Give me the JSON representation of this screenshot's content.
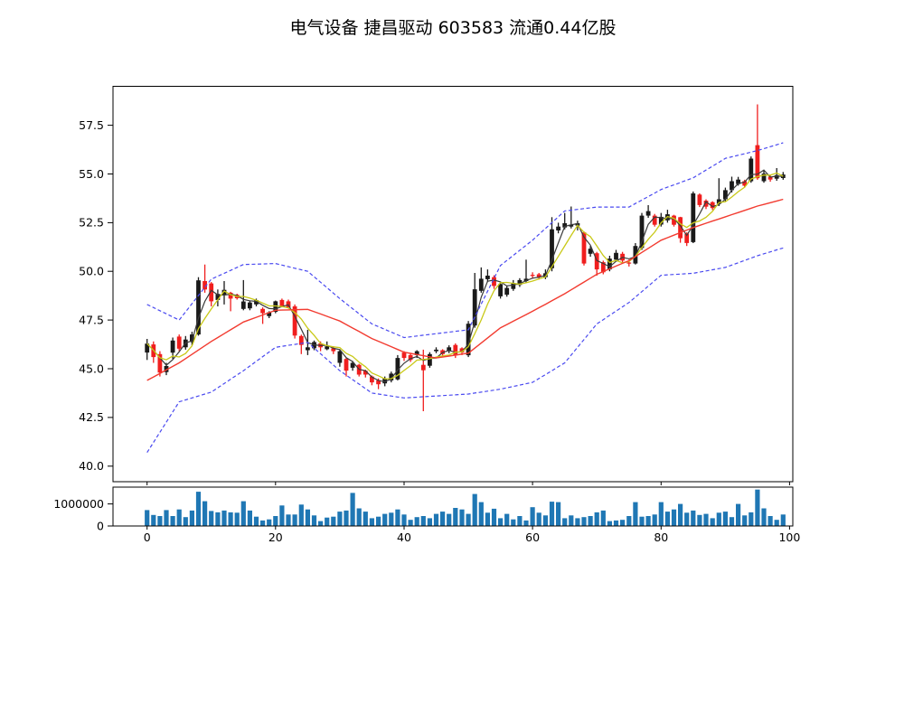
{
  "title": "电气设备 捷昌驱动 603583 流通0.44亿股",
  "chart_data": {
    "type": "candlestick",
    "panels": [
      "price",
      "volume"
    ],
    "legend": "none",
    "grid": false,
    "x_ticks": [
      0,
      20,
      40,
      60,
      80,
      100
    ],
    "price_ticks": [
      40.0,
      42.5,
      45.0,
      47.5,
      50.0,
      52.5,
      55.0,
      57.5
    ],
    "volume_ticks": [
      0,
      1000000
    ],
    "xlim": [
      -5.3,
      100.5
    ],
    "price_ylim": [
      39.2,
      59.5
    ],
    "volume_ylim": [
      0,
      1760000
    ],
    "candles": {
      "open": [
        45.83,
        46.25,
        45.75,
        44.83,
        45.83,
        46.65,
        46.1,
        46.37,
        46.76,
        49.5,
        49.38,
        48.53,
        48.8,
        48.9,
        48.8,
        48.07,
        48.1,
        48.3,
        48.07,
        47.7,
        47.92,
        48.53,
        48.46,
        48.2,
        46.68,
        45.95,
        46.05,
        46.3,
        46.0,
        46.05,
        45.3,
        45.5,
        45.05,
        45.2,
        44.9,
        44.6,
        44.4,
        44.25,
        44.4,
        44.45,
        45.83,
        45.7,
        45.7,
        45.2,
        45.15,
        45.9,
        45.95,
        45.9,
        46.22,
        46.05,
        45.69,
        47.22,
        49.0,
        49.6,
        49.7,
        48.72,
        48.8,
        49.1,
        49.3,
        49.5,
        49.82,
        49.85,
        49.7,
        50.16,
        52.1,
        52.25,
        52.3,
        52.35,
        52.0,
        50.9,
        50.93,
        50.47,
        50.1,
        50.6,
        50.9,
        50.45,
        50.4,
        51.2,
        52.86,
        52.86,
        52.4,
        52.62,
        52.86,
        52.78,
        51.93,
        51.5,
        53.94,
        53.63,
        53.55,
        53.47,
        53.7,
        54.17,
        54.48,
        54.63,
        54.63,
        56.48,
        54.63,
        54.86,
        54.76,
        54.79
      ],
      "high": [
        46.53,
        46.4,
        45.9,
        45.3,
        46.6,
        46.76,
        46.68,
        46.9,
        49.7,
        50.35,
        49.45,
        49.07,
        49.5,
        48.95,
        48.85,
        49.55,
        48.5,
        48.6,
        48.15,
        47.95,
        48.5,
        48.6,
        48.55,
        48.3,
        46.75,
        47.0,
        46.45,
        46.4,
        46.4,
        46.15,
        45.95,
        45.55,
        45.4,
        45.25,
        44.95,
        44.65,
        44.5,
        44.6,
        44.85,
        45.7,
        45.9,
        45.8,
        45.95,
        45.98,
        45.85,
        46.1,
        46.0,
        46.2,
        46.3,
        46.1,
        47.45,
        49.92,
        50.2,
        50.1,
        49.8,
        49.45,
        49.25,
        49.55,
        49.65,
        50.6,
        49.95,
        49.92,
        50.1,
        52.78,
        52.5,
        53.0,
        53.33,
        52.6,
        52.05,
        51.3,
        51.0,
        50.55,
        50.8,
        51.1,
        51.0,
        50.6,
        51.45,
        53.0,
        53.4,
        52.95,
        53.0,
        53.16,
        52.9,
        52.8,
        52.0,
        54.1,
        54.0,
        53.7,
        53.6,
        54.78,
        54.3,
        54.86,
        54.85,
        54.7,
        55.9,
        58.57,
        55.15,
        54.95,
        55.3,
        55.1
      ],
      "low": [
        45.45,
        45.3,
        44.6,
        44.67,
        45.5,
        45.9,
        45.98,
        46.2,
        46.7,
        48.9,
        48.2,
        48.2,
        48.3,
        47.95,
        48.55,
        48.0,
        48.0,
        48.2,
        47.3,
        47.6,
        47.85,
        48.15,
        48.1,
        46.55,
        45.75,
        45.7,
        45.95,
        45.9,
        45.95,
        45.75,
        45.1,
        44.6,
        44.9,
        44.6,
        44.55,
        44.15,
        43.95,
        44.1,
        44.3,
        44.4,
        45.4,
        45.35,
        45.55,
        42.82,
        45.05,
        45.8,
        45.65,
        45.8,
        45.55,
        45.7,
        45.6,
        47.1,
        48.9,
        49.45,
        49.1,
        48.6,
        48.7,
        49.0,
        49.2,
        49.4,
        49.62,
        49.58,
        49.6,
        50.0,
        51.95,
        52.15,
        52.2,
        52.1,
        50.3,
        50.75,
        49.78,
        49.85,
        50.0,
        50.5,
        50.4,
        50.25,
        50.35,
        51.1,
        52.75,
        52.3,
        52.3,
        52.5,
        52.3,
        51.47,
        51.3,
        51.45,
        53.3,
        53.2,
        53.15,
        53.35,
        53.6,
        54.05,
        54.4,
        54.3,
        54.55,
        54.7,
        54.55,
        54.6,
        54.65,
        54.7
      ],
      "close": [
        46.29,
        45.6,
        44.8,
        45.14,
        46.45,
        46.03,
        46.5,
        46.76,
        49.54,
        49.07,
        48.46,
        48.84,
        49.05,
        48.6,
        48.62,
        48.45,
        48.4,
        48.52,
        47.85,
        47.9,
        48.46,
        48.22,
        48.16,
        46.7,
        46.22,
        46.1,
        46.37,
        46.1,
        46.15,
        45.9,
        45.9,
        44.9,
        45.3,
        44.7,
        44.7,
        44.3,
        44.2,
        44.5,
        44.75,
        45.55,
        45.55,
        45.45,
        45.9,
        44.92,
        45.75,
        45.98,
        45.75,
        46.1,
        45.68,
        45.83,
        47.31,
        49.08,
        49.62,
        49.78,
        49.25,
        49.35,
        49.15,
        49.4,
        49.55,
        49.62,
        49.78,
        49.7,
        49.9,
        52.16,
        52.3,
        52.47,
        52.4,
        52.47,
        50.4,
        51.16,
        50.1,
        49.95,
        50.65,
        50.95,
        50.55,
        50.42,
        51.3,
        52.86,
        53.09,
        52.39,
        52.8,
        52.93,
        52.39,
        51.7,
        51.45,
        54.0,
        53.4,
        53.32,
        53.25,
        53.7,
        54.17,
        54.63,
        54.71,
        54.4,
        55.79,
        54.78,
        55.02,
        54.71,
        54.94,
        54.97
      ]
    },
    "volume": [
      720000,
      500000,
      450000,
      720000,
      450000,
      750000,
      400000,
      700000,
      1550000,
      1120000,
      680000,
      620000,
      700000,
      620000,
      600000,
      1120000,
      700000,
      420000,
      250000,
      300000,
      450000,
      930000,
      520000,
      520000,
      970000,
      750000,
      480000,
      220000,
      380000,
      420000,
      650000,
      700000,
      1500000,
      800000,
      650000,
      350000,
      420000,
      550000,
      600000,
      750000,
      520000,
      280000,
      400000,
      450000,
      350000,
      550000,
      650000,
      550000,
      820000,
      750000,
      550000,
      1450000,
      1080000,
      600000,
      780000,
      350000,
      550000,
      300000,
      450000,
      250000,
      850000,
      600000,
      480000,
      1100000,
      1080000,
      350000,
      480000,
      350000,
      400000,
      450000,
      620000,
      700000,
      220000,
      250000,
      280000,
      450000,
      1080000,
      420000,
      450000,
      520000,
      1080000,
      650000,
      750000,
      1000000,
      600000,
      700000,
      500000,
      550000,
      350000,
      600000,
      650000,
      400000,
      1000000,
      480000,
      620000,
      1650000,
      800000,
      450000,
      280000,
      520000
    ],
    "overlays": {
      "ma_fast_window": 3,
      "ma_mid_window": 5,
      "ma_long": {
        "indices": [
          0,
          5,
          10,
          15,
          20,
          25,
          30,
          35,
          40,
          45,
          50,
          55,
          60,
          65,
          70,
          75,
          80,
          85,
          90,
          95,
          99
        ],
        "values": [
          44.4,
          45.3,
          46.4,
          47.4,
          48.0,
          48.05,
          47.45,
          46.55,
          45.85,
          45.55,
          45.8,
          47.1,
          47.95,
          48.85,
          49.85,
          50.55,
          51.6,
          52.25,
          52.8,
          53.35,
          53.7
        ]
      },
      "band_upper": {
        "indices": [
          0,
          5,
          10,
          15,
          20,
          25,
          30,
          35,
          40,
          45,
          50,
          55,
          60,
          65,
          70,
          75,
          80,
          85,
          90,
          95,
          99
        ],
        "values": [
          48.3,
          47.5,
          49.6,
          50.35,
          50.4,
          50.0,
          48.6,
          47.3,
          46.6,
          46.8,
          47.0,
          50.3,
          51.6,
          53.1,
          53.3,
          53.3,
          54.2,
          54.8,
          55.8,
          56.2,
          56.6
        ]
      },
      "band_lower": {
        "indices": [
          0,
          5,
          10,
          15,
          20,
          25,
          30,
          35,
          40,
          45,
          50,
          55,
          60,
          65,
          70,
          75,
          80,
          85,
          90,
          95,
          99
        ],
        "values": [
          40.7,
          43.3,
          43.8,
          44.9,
          46.1,
          46.35,
          44.9,
          43.75,
          43.5,
          43.6,
          43.7,
          43.95,
          44.3,
          45.3,
          47.3,
          48.4,
          49.8,
          49.9,
          50.2,
          50.8,
          51.2
        ]
      }
    },
    "colors": {
      "up": "#1a1a1a",
      "down": "#f01e1e",
      "ma_fast": "#3a3a3a",
      "ma_mid": "#c9c918",
      "ma_long": "#f23b30",
      "band": "#4a4af0",
      "volume": "#1f77b4",
      "axis": "#000000",
      "background": "#ffffff"
    }
  }
}
